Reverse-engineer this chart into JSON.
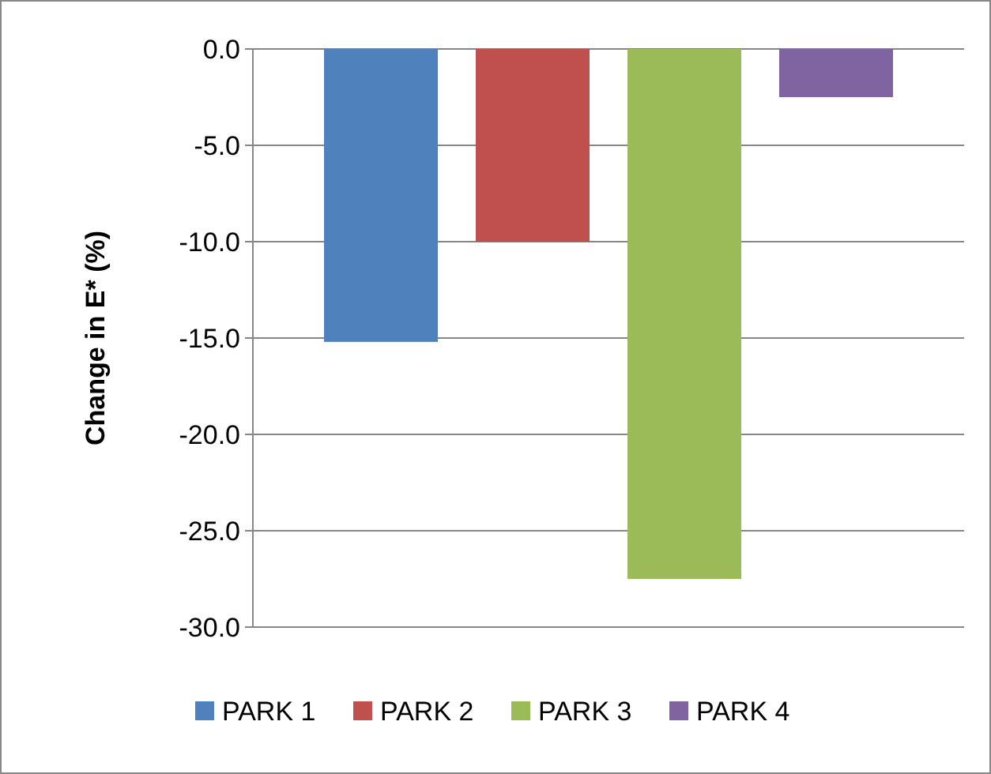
{
  "chart_data": {
    "type": "bar",
    "ylabel": "Change in E* (%)",
    "categories": [
      null
    ],
    "series": [
      {
        "name": "PARK 1",
        "color": "#4f81bd",
        "values": [
          -15.2
        ]
      },
      {
        "name": "PARK 2",
        "color": "#c0504d",
        "values": [
          -10.0
        ]
      },
      {
        "name": "PARK 3",
        "color": "#9bbb59",
        "values": [
          -27.5
        ]
      },
      {
        "name": "PARK 4",
        "color": "#8064a2",
        "values": [
          -2.5
        ]
      }
    ],
    "ylim": [
      -30,
      0
    ],
    "yticks": [
      {
        "value": 0,
        "label": "0.0"
      },
      {
        "value": -5,
        "label": "-5.0"
      },
      {
        "value": -10,
        "label": "-10.0"
      },
      {
        "value": -15,
        "label": "-15.0"
      },
      {
        "value": -20,
        "label": "-20.0"
      },
      {
        "value": -25,
        "label": "-25.0"
      },
      {
        "value": -30,
        "label": "-30.0"
      }
    ],
    "grid": "y",
    "legend": "bottom"
  }
}
